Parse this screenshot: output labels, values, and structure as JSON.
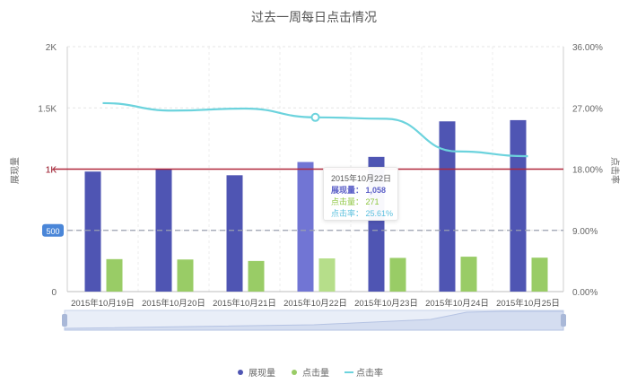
{
  "chart_data": {
    "type": "bar",
    "title": "过去一周每日点击情况",
    "categories": [
      "2015年10月19日",
      "2015年10月20日",
      "2015年10月21日",
      "2015年10月22日",
      "2015年10月23日",
      "2015年10月24日",
      "2015年10月25日"
    ],
    "series": [
      {
        "name": "展现量",
        "type": "bar",
        "axis": "left",
        "color": "#4f55b3",
        "values": [
          980,
          1000,
          950,
          1058,
          1100,
          1390,
          1400
        ]
      },
      {
        "name": "点击量",
        "type": "bar",
        "axis": "left",
        "color": "#99cc66",
        "values": [
          265,
          262,
          250,
          271,
          275,
          285,
          277
        ]
      },
      {
        "name": "点击率",
        "type": "line",
        "axis": "right",
        "color": "#6cd3dd",
        "values": [
          27.7,
          26.6,
          26.9,
          25.61,
          25.4,
          20.6,
          19.9
        ]
      }
    ],
    "y_left": {
      "label": "展现量",
      "min": 0,
      "max": 2000,
      "ticks": [
        "0",
        "500",
        "1K",
        "1.5K",
        "2K"
      ]
    },
    "y_right": {
      "label": "点击率",
      "min": 0,
      "max": 36,
      "ticks": [
        "0.00%",
        "9.00%",
        "18.00%",
        "27.00%",
        "36.00%"
      ]
    },
    "markline_solid": {
      "value": 1000,
      "label": "1K",
      "color": "#b0273a"
    },
    "markline_dashed": {
      "value": 500,
      "label": "500",
      "color": "#9aa0b0"
    },
    "legend": [
      "展现量",
      "点击量",
      "点击率"
    ],
    "legend_position": "bottom-center",
    "grid": true,
    "tooltip": {
      "date": "2015年10月22日",
      "rows": [
        "展现量： 1,058",
        "点击量： 271",
        "点击率： 25.61%"
      ]
    }
  }
}
